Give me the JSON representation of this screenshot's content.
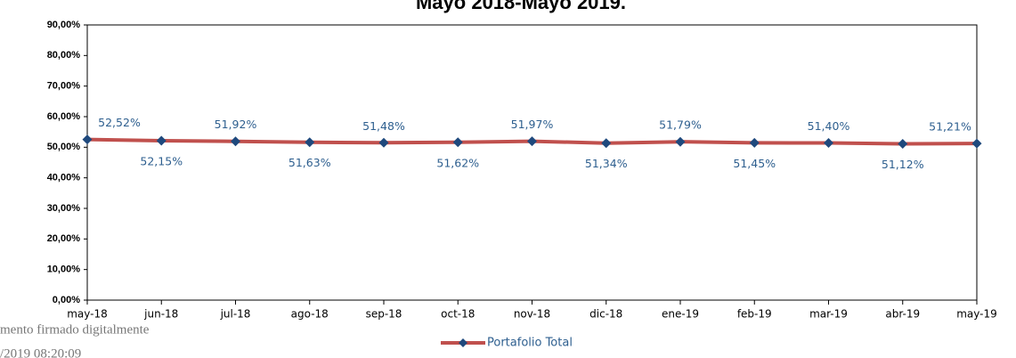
{
  "chart_data": {
    "type": "line",
    "title": "Mayo 2018-Mayo 2019.",
    "categories": [
      "may-18",
      "jun-18",
      "jul-18",
      "ago-18",
      "sep-18",
      "oct-18",
      "nov-18",
      "dic-18",
      "ene-19",
      "feb-19",
      "mar-19",
      "abr-19",
      "may-19"
    ],
    "series": [
      {
        "name": "Portafolio Total",
        "color": "#c0504d",
        "marker_color": "#1f497d",
        "values": [
          52.52,
          52.15,
          51.92,
          51.63,
          51.48,
          51.62,
          51.97,
          51.34,
          51.79,
          51.45,
          51.4,
          51.12,
          51.21
        ],
        "value_labels": [
          "52,52%",
          "52,15%",
          "51,92%",
          "51,63%",
          "51,48%",
          "51,62%",
          "51,97%",
          "51,34%",
          "51,79%",
          "51,45%",
          "51,40%",
          "51,12%",
          "51,21%"
        ]
      }
    ],
    "ylim": [
      0,
      90
    ],
    "yticks": [
      {
        "value": 0,
        "label": "0,00%"
      },
      {
        "value": 10,
        "label": "10,00%"
      },
      {
        "value": 20,
        "label": "20,00%"
      },
      {
        "value": 30,
        "label": "30,00%"
      },
      {
        "value": 40,
        "label": "40,00%"
      },
      {
        "value": 50,
        "label": "50,00%"
      },
      {
        "value": 60,
        "label": "60,00%"
      },
      {
        "value": 70,
        "label": "70,00%"
      },
      {
        "value": 80,
        "label": "80,00%"
      },
      {
        "value": 90,
        "label": "90,00%"
      }
    ],
    "legend": "bottom",
    "annotations": [
      "mento firmado digitalmente",
      "/2019 08:20:09"
    ]
  }
}
